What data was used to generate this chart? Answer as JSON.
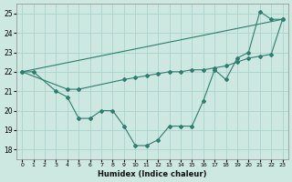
{
  "xlabel": "Humidex (Indice chaleur)",
  "background_color": "#cce8e0",
  "grid_color": "#aad4cc",
  "line_color": "#2e7d6e",
  "xlim": [
    -0.5,
    23.5
  ],
  "ylim": [
    17.5,
    25.5
  ],
  "yticks": [
    18,
    19,
    20,
    21,
    22,
    23,
    24,
    25
  ],
  "xticks": [
    0,
    1,
    2,
    3,
    4,
    5,
    6,
    7,
    8,
    9,
    10,
    11,
    12,
    13,
    14,
    15,
    16,
    17,
    18,
    19,
    20,
    21,
    22,
    23
  ],
  "line1_x": [
    0,
    1,
    3,
    4,
    5,
    6,
    7,
    8,
    9,
    10,
    11,
    12,
    13,
    14,
    15,
    16,
    17,
    18,
    19,
    20,
    21,
    22,
    23
  ],
  "line1_y": [
    22.0,
    22.0,
    21.0,
    20.7,
    19.6,
    19.6,
    20.0,
    20.0,
    19.2,
    18.2,
    18.2,
    18.5,
    19.2,
    19.2,
    19.2,
    20.5,
    22.1,
    21.6,
    22.7,
    23.0,
    25.1,
    24.7,
    24.7
  ],
  "line2_x": [
    0,
    23
  ],
  "line2_y": [
    22.0,
    24.7
  ],
  "line3_x": [
    0,
    4,
    5,
    9,
    10,
    11,
    12,
    13,
    14,
    15,
    16,
    17,
    18,
    19,
    20,
    21,
    22,
    23
  ],
  "line3_y": [
    22.0,
    21.1,
    21.1,
    21.6,
    21.7,
    21.8,
    21.9,
    22.0,
    22.0,
    22.1,
    22.1,
    22.2,
    22.3,
    22.5,
    22.7,
    22.8,
    22.9,
    24.7
  ]
}
